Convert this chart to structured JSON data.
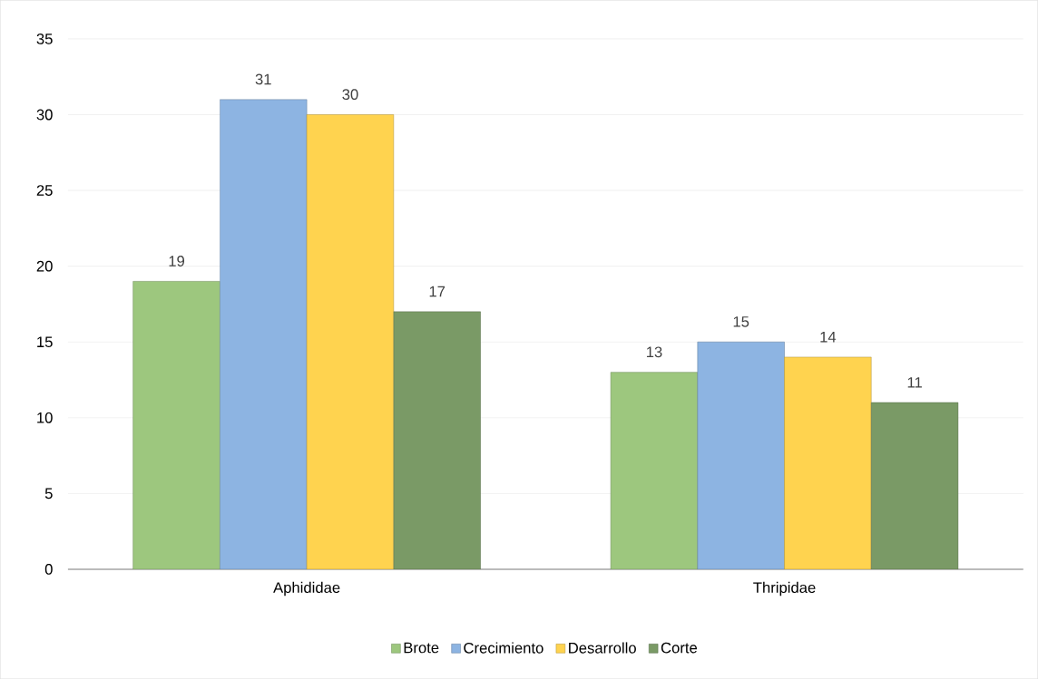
{
  "chart_data": {
    "type": "bar",
    "categories": [
      "Aphididae",
      "Thripidae"
    ],
    "series": [
      {
        "name": "Brote",
        "color": "#9dc77e",
        "values": [
          19,
          13
        ]
      },
      {
        "name": "Crecimiento",
        "color": "#8db4e2",
        "values": [
          31,
          15
        ]
      },
      {
        "name": "Desarrollo",
        "color": "#ffd34f",
        "values": [
          30,
          14
        ]
      },
      {
        "name": "Corte",
        "color": "#7a9a66",
        "values": [
          17,
          11
        ]
      }
    ],
    "ylim": [
      0,
      35
    ],
    "yticks": [
      0,
      5,
      10,
      15,
      20,
      25,
      30,
      35
    ],
    "grid": "y",
    "legend": "bottom",
    "data_labels": true
  }
}
